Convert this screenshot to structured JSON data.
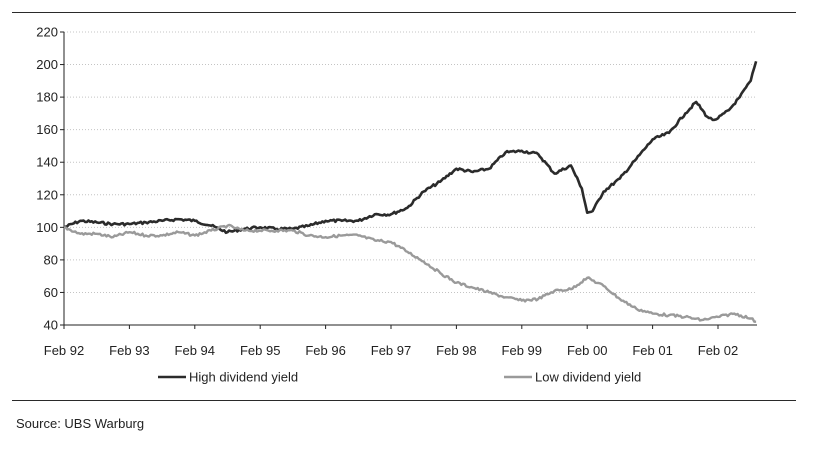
{
  "chart_data": {
    "type": "line",
    "title": "",
    "xlabel": "",
    "ylabel": "",
    "x_ticks": [
      "Feb 92",
      "Feb 93",
      "Feb 94",
      "Feb 95",
      "Feb 96",
      "Feb 97",
      "Feb 98",
      "Feb 99",
      "Feb 00",
      "Feb 01",
      "Feb 02"
    ],
    "y_ticks": [
      40,
      60,
      80,
      100,
      120,
      140,
      160,
      180,
      200,
      220
    ],
    "ylim": [
      40,
      220
    ],
    "xlim": [
      "Feb 92",
      "Sep 02"
    ],
    "grid": "horizontal dotted",
    "legend_position": "bottom",
    "series": [
      {
        "name": "High dividend yield",
        "color": "#2b2b2b",
        "points": [
          [
            "Feb 92",
            100
          ],
          [
            "May 92",
            104
          ],
          [
            "Aug 92",
            103
          ],
          [
            "Nov 92",
            102
          ],
          [
            "Feb 93",
            102
          ],
          [
            "May 93",
            103
          ],
          [
            "Aug 93",
            104
          ],
          [
            "Nov 93",
            105
          ],
          [
            "Feb 94",
            104
          ],
          [
            "May 94",
            101
          ],
          [
            "Aug 94",
            97
          ],
          [
            "Nov 94",
            99
          ],
          [
            "Feb 95",
            100
          ],
          [
            "May 95",
            99
          ],
          [
            "Aug 95",
            99
          ],
          [
            "Nov 95",
            101
          ],
          [
            "Feb 96",
            104
          ],
          [
            "May 96",
            104
          ],
          [
            "Aug 96",
            104
          ],
          [
            "Nov 96",
            108
          ],
          [
            "Feb 97",
            108
          ],
          [
            "May 97",
            112
          ],
          [
            "Aug 97",
            122
          ],
          [
            "Nov 97",
            128
          ],
          [
            "Feb 98",
            136
          ],
          [
            "May 98",
            134
          ],
          [
            "Aug 98",
            136
          ],
          [
            "Nov 98",
            146
          ],
          [
            "Feb 99",
            147
          ],
          [
            "May 99",
            145
          ],
          [
            "Aug 99",
            133
          ],
          [
            "Nov 99",
            138
          ],
          [
            "Jan 00",
            124
          ],
          [
            "Feb 00",
            109
          ],
          [
            "Mar 00",
            110
          ],
          [
            "May 00",
            122
          ],
          [
            "Aug 00",
            130
          ],
          [
            "Nov 00",
            142
          ],
          [
            "Feb 01",
            154
          ],
          [
            "May 01",
            158
          ],
          [
            "Aug 01",
            170
          ],
          [
            "Oct 01",
            177
          ],
          [
            "Dec 01",
            168
          ],
          [
            "Jan 02",
            166
          ],
          [
            "Feb 02",
            167
          ],
          [
            "Apr 02",
            172
          ],
          [
            "Jun 02",
            180
          ],
          [
            "Aug 02",
            190
          ],
          [
            "Sep 02",
            202
          ]
        ]
      },
      {
        "name": "Low dividend yield",
        "color": "#9a9a9a",
        "points": [
          [
            "Feb 92",
            100
          ],
          [
            "May 92",
            96
          ],
          [
            "Aug 92",
            96
          ],
          [
            "Nov 92",
            94
          ],
          [
            "Feb 93",
            97
          ],
          [
            "May 93",
            95
          ],
          [
            "Aug 93",
            95
          ],
          [
            "Nov 93",
            97
          ],
          [
            "Feb 94",
            95
          ],
          [
            "May 94",
            98
          ],
          [
            "Aug 94",
            101
          ],
          [
            "Nov 94",
            98
          ],
          [
            "Feb 95",
            98
          ],
          [
            "May 95",
            98
          ],
          [
            "Aug 95",
            98
          ],
          [
            "Nov 95",
            95
          ],
          [
            "Feb 96",
            94
          ],
          [
            "May 96",
            95
          ],
          [
            "Aug 96",
            95
          ],
          [
            "Nov 96",
            92
          ],
          [
            "Feb 97",
            91
          ],
          [
            "May 97",
            85
          ],
          [
            "Aug 97",
            79
          ],
          [
            "Nov 97",
            72
          ],
          [
            "Feb 98",
            66
          ],
          [
            "May 98",
            63
          ],
          [
            "Aug 98",
            60
          ],
          [
            "Nov 98",
            57
          ],
          [
            "Feb 99",
            55
          ],
          [
            "May 99",
            56
          ],
          [
            "Aug 99",
            61
          ],
          [
            "Nov 99",
            62
          ],
          [
            "Feb 00",
            69
          ],
          [
            "May 00",
            64
          ],
          [
            "Aug 00",
            56
          ],
          [
            "Nov 00",
            50
          ],
          [
            "Feb 01",
            47
          ],
          [
            "May 01",
            46
          ],
          [
            "Aug 01",
            45
          ],
          [
            "Nov 01",
            43
          ],
          [
            "Feb 02",
            45
          ],
          [
            "May 02",
            47
          ],
          [
            "Aug 02",
            44
          ],
          [
            "Sep 02",
            42
          ]
        ]
      }
    ]
  },
  "source": "Source: UBS Warburg"
}
